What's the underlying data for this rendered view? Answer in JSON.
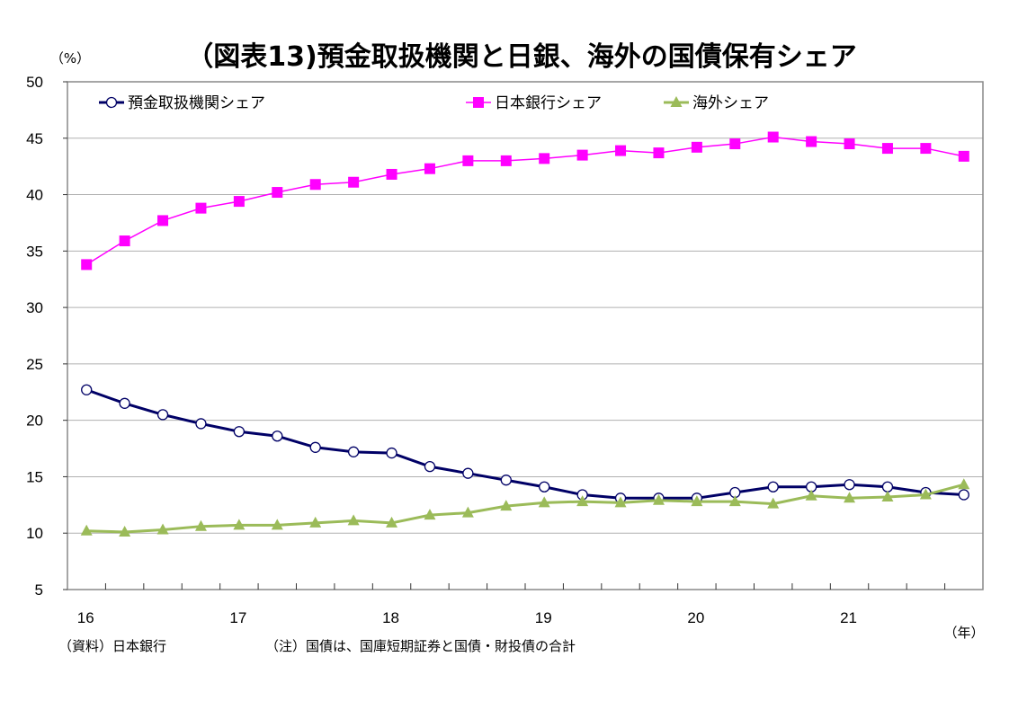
{
  "chart_data": {
    "type": "line",
    "title": "（図表13)預金取扱機関と日銀、海外の国債保有シェア",
    "ylabel": "（%）",
    "xlabel": "（年）",
    "ylim": [
      5,
      50
    ],
    "yticks": [
      "50",
      "45",
      "40",
      "35",
      "30",
      "25",
      "20",
      "15",
      "10",
      "5"
    ],
    "xtick_labels": [
      "16",
      "17",
      "18",
      "19",
      "20",
      "21"
    ],
    "grid": true,
    "legend": "top-left",
    "source": "（資料）日本銀行",
    "note": "（注）国債は、国庫短期証券と国債・財投債の合計",
    "x": [
      "16Q1",
      "16Q2",
      "16Q3",
      "16Q4",
      "17Q1",
      "17Q2",
      "17Q3",
      "17Q4",
      "18Q1",
      "18Q2",
      "18Q3",
      "18Q4",
      "19Q1",
      "19Q2",
      "19Q3",
      "19Q4",
      "20Q1",
      "20Q2",
      "20Q3",
      "20Q4",
      "21Q1",
      "21Q2",
      "21Q3",
      "21Q4"
    ],
    "series": [
      {
        "name": "預金取扱機関シェア",
        "color": "#000066",
        "marker": "circle",
        "values": [
          22.7,
          21.5,
          20.5,
          19.7,
          19.0,
          18.6,
          17.6,
          17.2,
          17.1,
          15.9,
          15.3,
          14.7,
          14.1,
          13.4,
          13.1,
          13.1,
          13.1,
          13.6,
          14.1,
          14.1,
          14.3,
          14.1,
          13.6,
          13.4
        ]
      },
      {
        "name": "日本銀行シェア",
        "color": "#FF00FF",
        "marker": "square",
        "values": [
          33.8,
          35.9,
          37.7,
          38.8,
          39.4,
          40.2,
          40.9,
          41.1,
          41.8,
          42.3,
          43.0,
          43.0,
          43.2,
          43.5,
          43.9,
          43.7,
          44.2,
          44.5,
          45.1,
          44.7,
          44.5,
          44.1,
          44.1,
          43.4
        ]
      },
      {
        "name": "海外シェア",
        "color": "#9BBB59",
        "marker": "triangle",
        "values": [
          10.2,
          10.1,
          10.3,
          10.6,
          10.7,
          10.7,
          10.9,
          11.1,
          10.9,
          11.6,
          11.8,
          12.4,
          12.7,
          12.8,
          12.7,
          12.9,
          12.8,
          12.8,
          12.6,
          13.3,
          13.1,
          13.2,
          13.4,
          14.3
        ]
      }
    ]
  }
}
